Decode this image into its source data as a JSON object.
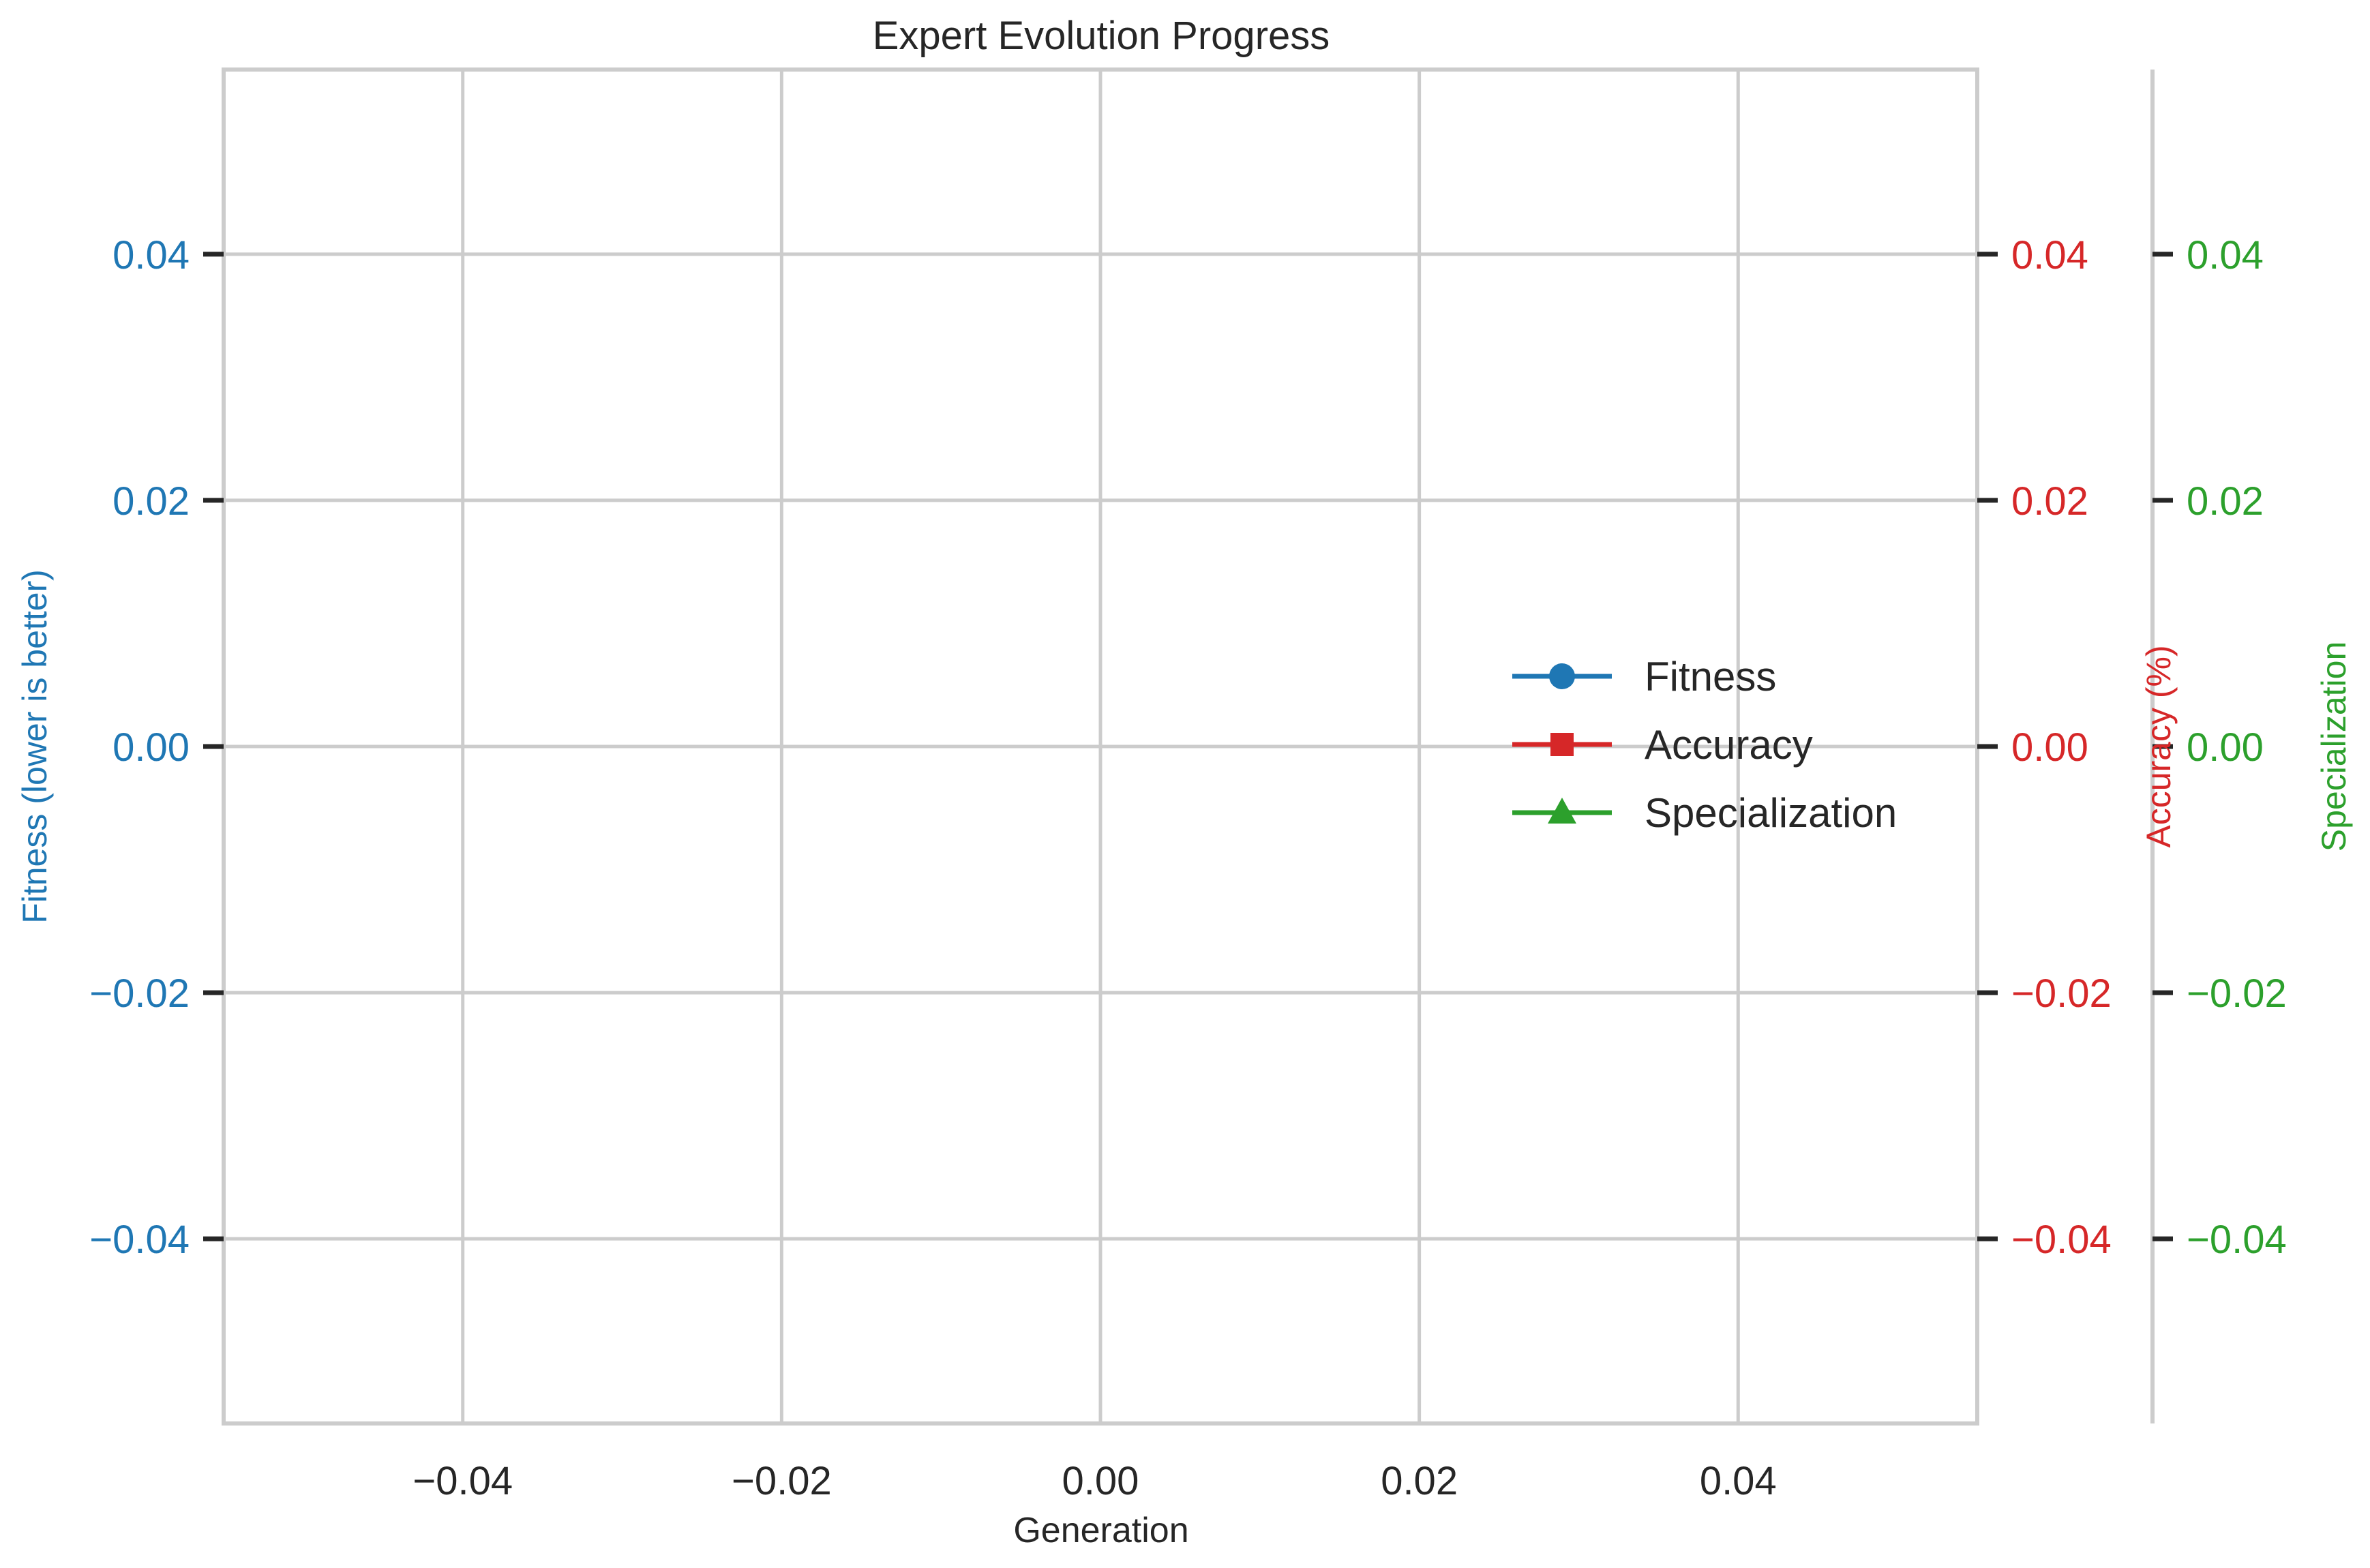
{
  "chart_data": {
    "type": "line",
    "title": "Expert Evolution Progress",
    "xlabel": "Generation",
    "xlim": [
      -0.055,
      0.055
    ],
    "x_ticks": [
      -0.04,
      -0.02,
      0.0,
      0.02,
      0.04
    ],
    "x_tick_labels": [
      "−0.04",
      "−0.02",
      "0.00",
      "0.02",
      "0.04"
    ],
    "grid": true,
    "legend_position": "center-right",
    "series": [
      {
        "name": "Fitness",
        "color": "#1f77b4",
        "marker": "circle",
        "axis": "left",
        "values": []
      },
      {
        "name": "Accuracy",
        "color": "#d62728",
        "marker": "square",
        "axis": "right",
        "values": []
      },
      {
        "name": "Specialization",
        "color": "#2ca02c",
        "marker": "triangle",
        "axis": "right-outer",
        "values": []
      }
    ],
    "y_axes": [
      {
        "id": "left",
        "label": "Fitness (lower is better)",
        "color": "#1f77b4",
        "ylim": [
          -0.055,
          0.055
        ],
        "ticks": [
          0.04,
          0.02,
          0.0,
          -0.02,
          -0.04
        ],
        "tick_labels": [
          "0.04",
          "0.02",
          "0.00",
          "−0.02",
          "−0.04"
        ]
      },
      {
        "id": "right",
        "label": "Accuracy (%)",
        "color": "#d62728",
        "ylim": [
          -0.055,
          0.055
        ],
        "ticks": [
          0.04,
          0.02,
          0.0,
          -0.02,
          -0.04
        ],
        "tick_labels": [
          "0.04",
          "0.02",
          "0.00",
          "−0.02",
          "−0.04"
        ]
      },
      {
        "id": "right-outer",
        "label": "Specialization",
        "color": "#2ca02c",
        "ylim": [
          -0.055,
          0.055
        ],
        "ticks": [
          0.04,
          0.02,
          0.0,
          -0.02,
          -0.04
        ],
        "tick_labels": [
          "0.04",
          "0.02",
          "0.00",
          "−0.02",
          "−0.04"
        ]
      }
    ]
  }
}
